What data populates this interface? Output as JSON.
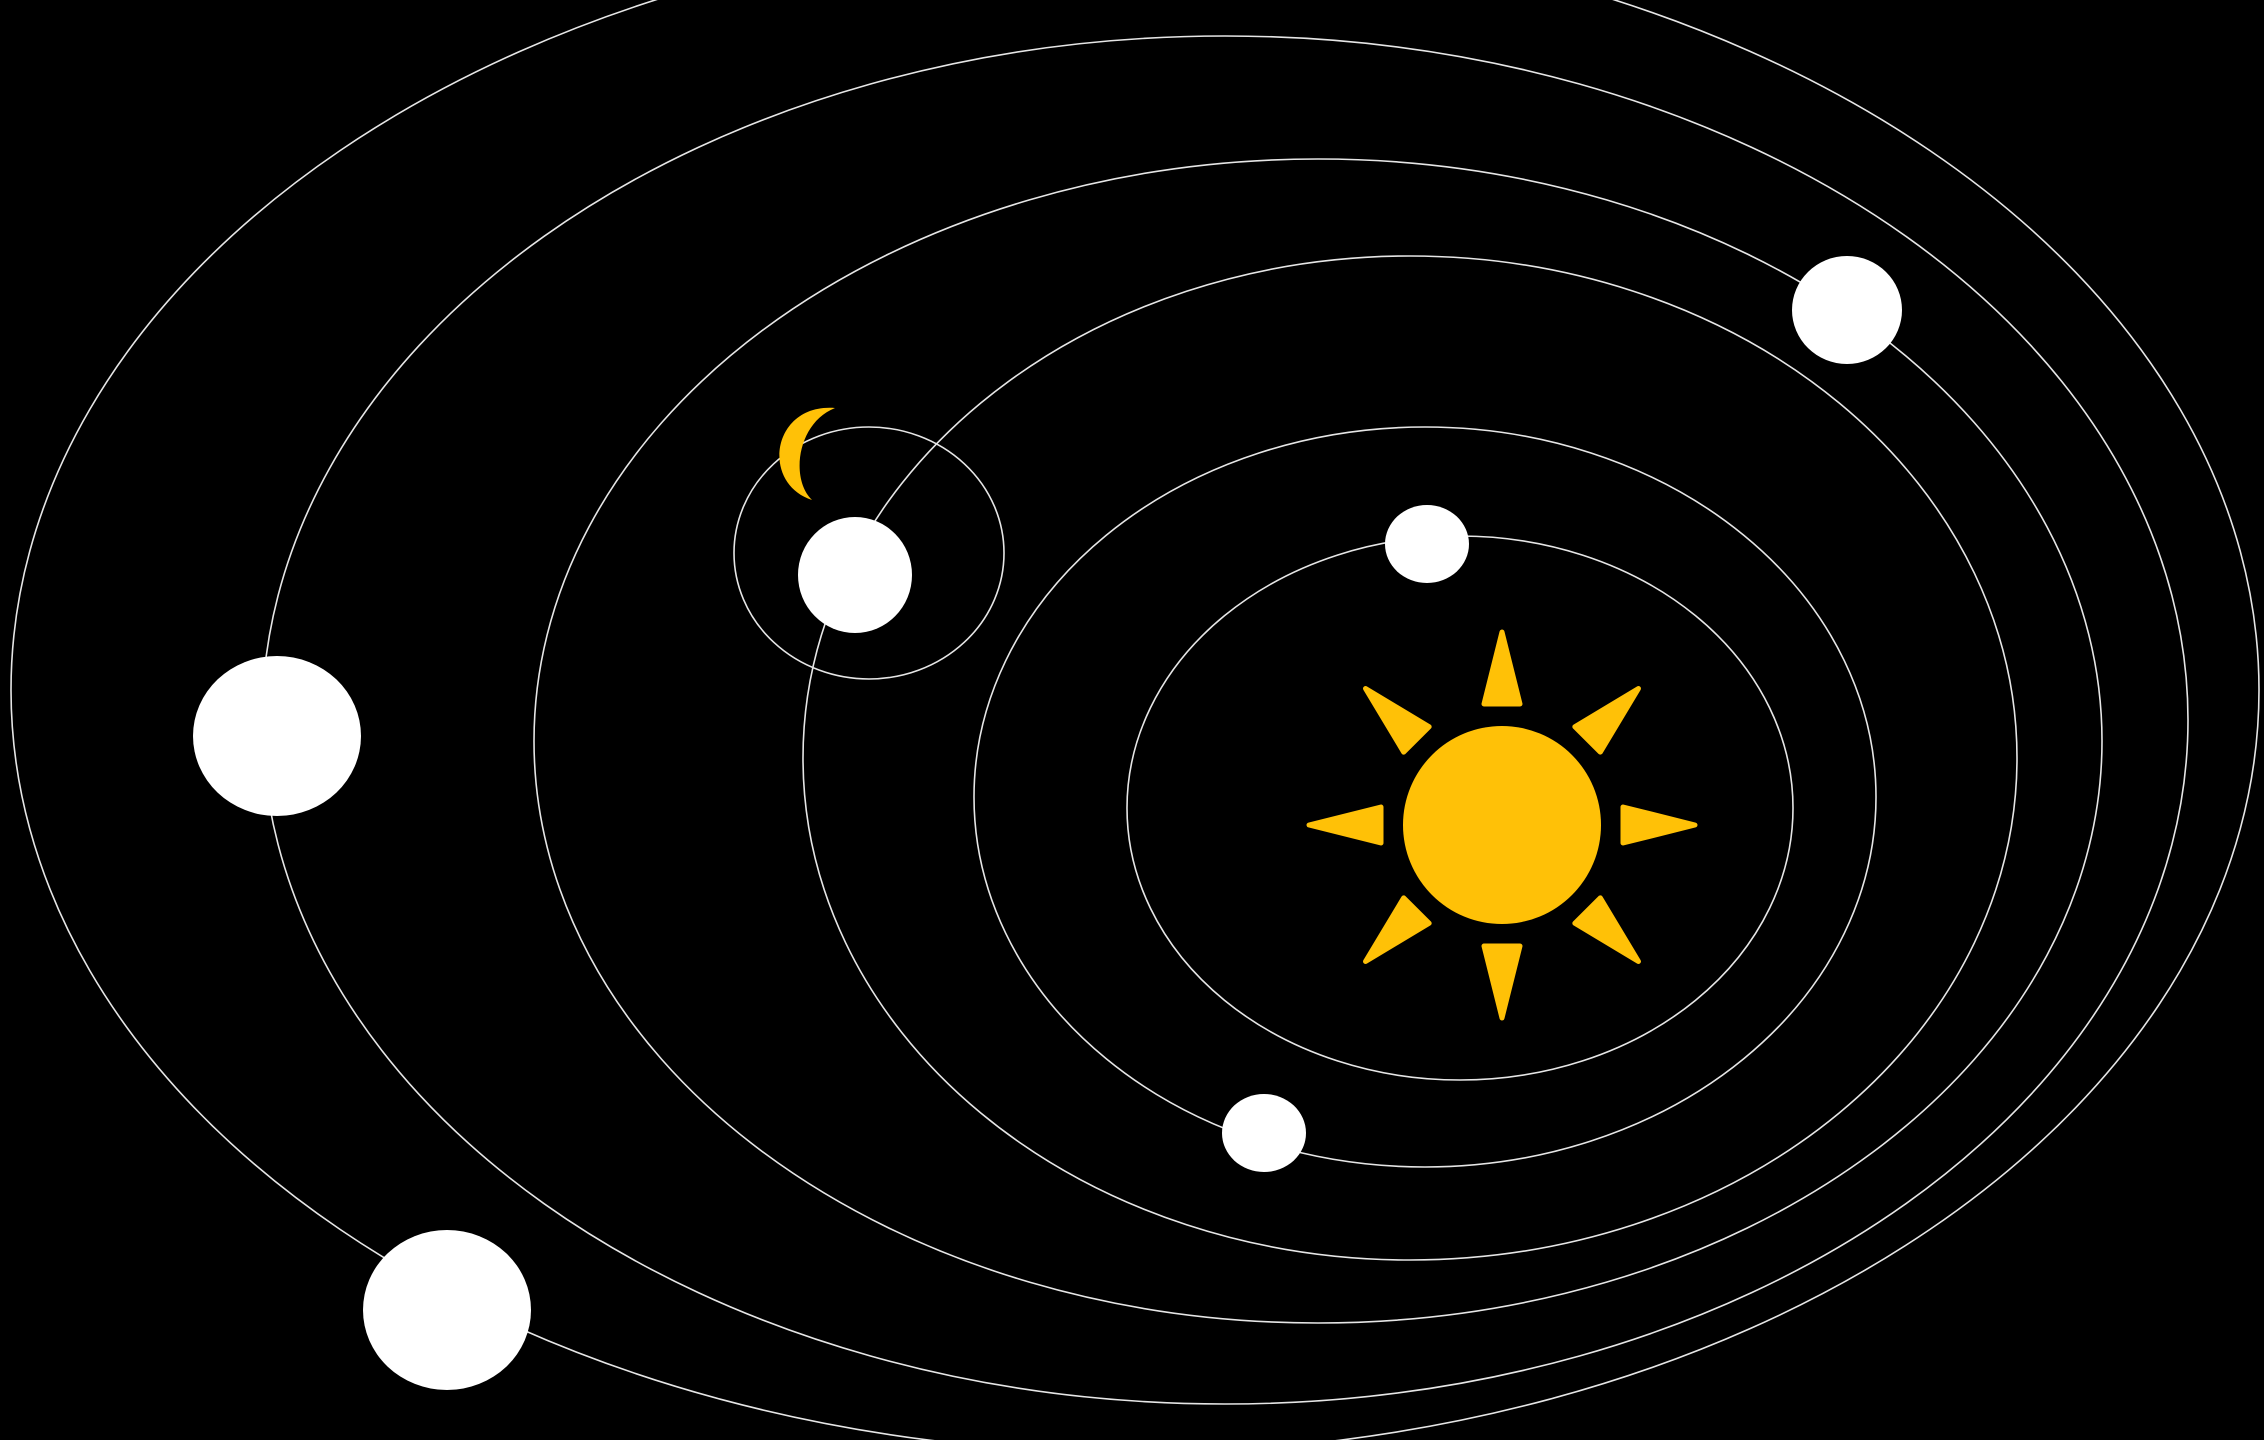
{
  "colors": {
    "background": "#000000",
    "orbit_stroke": "#e6e6e6",
    "planet_fill": "#ffffff",
    "sun_fill": "#ffc107",
    "moon_fill": "#ffc107"
  },
  "icons": {
    "sun": "sun-icon",
    "moon": "crescent-moon-icon",
    "planet": "planet-circle"
  }
}
